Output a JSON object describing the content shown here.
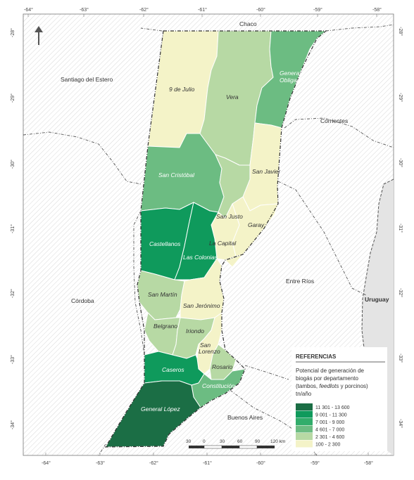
{
  "map": {
    "lon_ticks_top": [
      "-64°",
      "-63°",
      "-62°",
      "-61°",
      "-60°",
      "-59°",
      "-58°"
    ],
    "lon_ticks_bottom": [
      "-64°",
      "-63°",
      "-62°",
      "-61°",
      "-60°",
      "-59°",
      "-58°"
    ],
    "lat_ticks_left": [
      "-28°",
      "-29°",
      "-30°",
      "-31°",
      "-32°",
      "-33°",
      "-34°"
    ],
    "lat_ticks_right": [
      "-28°",
      "-29°",
      "-30°",
      "-31°",
      "-32°",
      "-33°",
      "-34°"
    ],
    "north_arrow": "arrow-up-icon"
  },
  "provinces": {
    "chaco": "Chaco",
    "santiago": "Santiago del Estero",
    "corrientes": "Corrientes",
    "cordoba": "Córdoba",
    "entre_rios": "Entre Ríos",
    "uruguay": "Uruguay",
    "buenos_aires": "Buenos Aires"
  },
  "departments": {
    "nueve_de_julio": "9 de Julio",
    "vera": "Vera",
    "general_obligado_1": "General",
    "general_obligado_2": "Obligado",
    "san_cristobal": "San Cristóbal",
    "san_javier": "San Javier",
    "san_justo": "San Justo",
    "garay": "Garay",
    "castellanos": "Castellanos",
    "la_capital": "La Capital",
    "las_colonias": "Las Colonias",
    "san_martin": "San Martín",
    "san_jeronimo": "San Jerónimo",
    "belgrano": "Belgrano",
    "iriondo": "Iriondo",
    "san_lorenzo_1": "San",
    "san_lorenzo_2": "Lorenzo",
    "rosario": "Rosario",
    "caseros": "Caseros",
    "constitucion": "Constitución",
    "general_lopez": "General López"
  },
  "legend": {
    "title": "REFERENCIAS",
    "subtitle_1": "Potencial de generación de",
    "subtitle_2": "biogás por departamento",
    "subtitle_3a": "(tambos, ",
    "subtitle_3b": "feedlots",
    "subtitle_3c": " y porcinos)",
    "unit": "tn/año",
    "classes": [
      {
        "label": "11 301 - 13 600",
        "color": "#1b6e45"
      },
      {
        "label": "9 001 - 11 300",
        "color": "#0f9a5c"
      },
      {
        "label": "7 001 - 9 000",
        "color": "#32ad6b"
      },
      {
        "label": "4 601 - 7 000",
        "color": "#6cbc82"
      },
      {
        "label": "2 301 - 4 600",
        "color": "#b7d9a4"
      },
      {
        "label": "100 - 2 300",
        "color": "#f4f3c8"
      }
    ]
  },
  "scale": {
    "labels": [
      "30",
      "0",
      "30",
      "60",
      "90",
      "120 km"
    ]
  }
}
